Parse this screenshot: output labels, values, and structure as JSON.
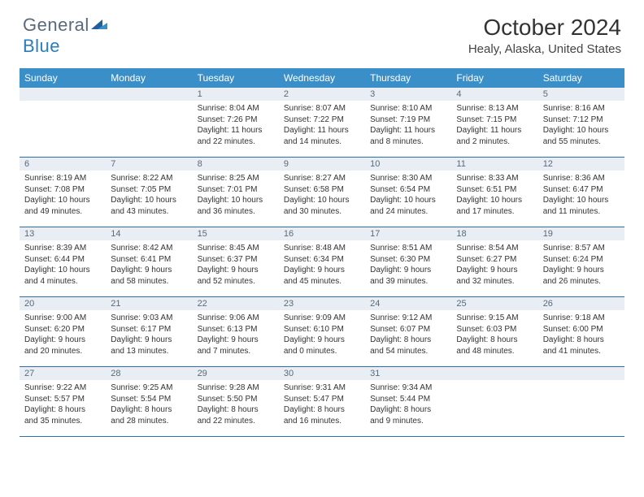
{
  "logo": {
    "word1": "General",
    "word2": "Blue"
  },
  "title": "October 2024",
  "location": "Healy, Alaska, United States",
  "colors": {
    "header_bg": "#3b8fc8",
    "header_text": "#ffffff",
    "daynum_bg": "#e8eef3",
    "daynum_text": "#5a6a7a",
    "row_divider": "#2a6fa8",
    "logo_gray": "#5a6a7a",
    "logo_blue": "#2a7dba",
    "body_text": "#333333",
    "background": "#ffffff"
  },
  "weekdays": [
    "Sunday",
    "Monday",
    "Tuesday",
    "Wednesday",
    "Thursday",
    "Friday",
    "Saturday"
  ],
  "weeks": [
    [
      null,
      null,
      {
        "n": "1",
        "sr": "Sunrise: 8:04 AM",
        "ss": "Sunset: 7:26 PM",
        "dl": "Daylight: 11 hours and 22 minutes."
      },
      {
        "n": "2",
        "sr": "Sunrise: 8:07 AM",
        "ss": "Sunset: 7:22 PM",
        "dl": "Daylight: 11 hours and 14 minutes."
      },
      {
        "n": "3",
        "sr": "Sunrise: 8:10 AM",
        "ss": "Sunset: 7:19 PM",
        "dl": "Daylight: 11 hours and 8 minutes."
      },
      {
        "n": "4",
        "sr": "Sunrise: 8:13 AM",
        "ss": "Sunset: 7:15 PM",
        "dl": "Daylight: 11 hours and 2 minutes."
      },
      {
        "n": "5",
        "sr": "Sunrise: 8:16 AM",
        "ss": "Sunset: 7:12 PM",
        "dl": "Daylight: 10 hours and 55 minutes."
      }
    ],
    [
      {
        "n": "6",
        "sr": "Sunrise: 8:19 AM",
        "ss": "Sunset: 7:08 PM",
        "dl": "Daylight: 10 hours and 49 minutes."
      },
      {
        "n": "7",
        "sr": "Sunrise: 8:22 AM",
        "ss": "Sunset: 7:05 PM",
        "dl": "Daylight: 10 hours and 43 minutes."
      },
      {
        "n": "8",
        "sr": "Sunrise: 8:25 AM",
        "ss": "Sunset: 7:01 PM",
        "dl": "Daylight: 10 hours and 36 minutes."
      },
      {
        "n": "9",
        "sr": "Sunrise: 8:27 AM",
        "ss": "Sunset: 6:58 PM",
        "dl": "Daylight: 10 hours and 30 minutes."
      },
      {
        "n": "10",
        "sr": "Sunrise: 8:30 AM",
        "ss": "Sunset: 6:54 PM",
        "dl": "Daylight: 10 hours and 24 minutes."
      },
      {
        "n": "11",
        "sr": "Sunrise: 8:33 AM",
        "ss": "Sunset: 6:51 PM",
        "dl": "Daylight: 10 hours and 17 minutes."
      },
      {
        "n": "12",
        "sr": "Sunrise: 8:36 AM",
        "ss": "Sunset: 6:47 PM",
        "dl": "Daylight: 10 hours and 11 minutes."
      }
    ],
    [
      {
        "n": "13",
        "sr": "Sunrise: 8:39 AM",
        "ss": "Sunset: 6:44 PM",
        "dl": "Daylight: 10 hours and 4 minutes."
      },
      {
        "n": "14",
        "sr": "Sunrise: 8:42 AM",
        "ss": "Sunset: 6:41 PM",
        "dl": "Daylight: 9 hours and 58 minutes."
      },
      {
        "n": "15",
        "sr": "Sunrise: 8:45 AM",
        "ss": "Sunset: 6:37 PM",
        "dl": "Daylight: 9 hours and 52 minutes."
      },
      {
        "n": "16",
        "sr": "Sunrise: 8:48 AM",
        "ss": "Sunset: 6:34 PM",
        "dl": "Daylight: 9 hours and 45 minutes."
      },
      {
        "n": "17",
        "sr": "Sunrise: 8:51 AM",
        "ss": "Sunset: 6:30 PM",
        "dl": "Daylight: 9 hours and 39 minutes."
      },
      {
        "n": "18",
        "sr": "Sunrise: 8:54 AM",
        "ss": "Sunset: 6:27 PM",
        "dl": "Daylight: 9 hours and 32 minutes."
      },
      {
        "n": "19",
        "sr": "Sunrise: 8:57 AM",
        "ss": "Sunset: 6:24 PM",
        "dl": "Daylight: 9 hours and 26 minutes."
      }
    ],
    [
      {
        "n": "20",
        "sr": "Sunrise: 9:00 AM",
        "ss": "Sunset: 6:20 PM",
        "dl": "Daylight: 9 hours and 20 minutes."
      },
      {
        "n": "21",
        "sr": "Sunrise: 9:03 AM",
        "ss": "Sunset: 6:17 PM",
        "dl": "Daylight: 9 hours and 13 minutes."
      },
      {
        "n": "22",
        "sr": "Sunrise: 9:06 AM",
        "ss": "Sunset: 6:13 PM",
        "dl": "Daylight: 9 hours and 7 minutes."
      },
      {
        "n": "23",
        "sr": "Sunrise: 9:09 AM",
        "ss": "Sunset: 6:10 PM",
        "dl": "Daylight: 9 hours and 0 minutes."
      },
      {
        "n": "24",
        "sr": "Sunrise: 9:12 AM",
        "ss": "Sunset: 6:07 PM",
        "dl": "Daylight: 8 hours and 54 minutes."
      },
      {
        "n": "25",
        "sr": "Sunrise: 9:15 AM",
        "ss": "Sunset: 6:03 PM",
        "dl": "Daylight: 8 hours and 48 minutes."
      },
      {
        "n": "26",
        "sr": "Sunrise: 9:18 AM",
        "ss": "Sunset: 6:00 PM",
        "dl": "Daylight: 8 hours and 41 minutes."
      }
    ],
    [
      {
        "n": "27",
        "sr": "Sunrise: 9:22 AM",
        "ss": "Sunset: 5:57 PM",
        "dl": "Daylight: 8 hours and 35 minutes."
      },
      {
        "n": "28",
        "sr": "Sunrise: 9:25 AM",
        "ss": "Sunset: 5:54 PM",
        "dl": "Daylight: 8 hours and 28 minutes."
      },
      {
        "n": "29",
        "sr": "Sunrise: 9:28 AM",
        "ss": "Sunset: 5:50 PM",
        "dl": "Daylight: 8 hours and 22 minutes."
      },
      {
        "n": "30",
        "sr": "Sunrise: 9:31 AM",
        "ss": "Sunset: 5:47 PM",
        "dl": "Daylight: 8 hours and 16 minutes."
      },
      {
        "n": "31",
        "sr": "Sunrise: 9:34 AM",
        "ss": "Sunset: 5:44 PM",
        "dl": "Daylight: 8 hours and 9 minutes."
      },
      null,
      null
    ]
  ]
}
